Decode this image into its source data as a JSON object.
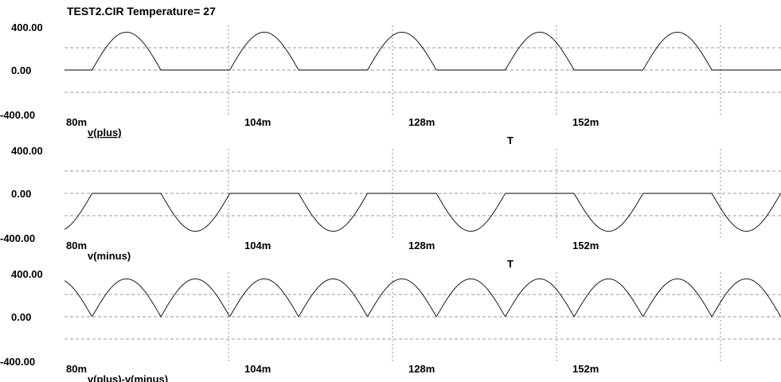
{
  "title": "TEST2.CIR Temperature= 27",
  "chart_data": [
    {
      "type": "line",
      "series": [
        {
          "name": "v(plus)",
          "expr": "max(0, 340*sin(2*pi*60*t))"
        }
      ],
      "xlabel": "T",
      "ylabel": "",
      "xlim": [
        0.08,
        0.1667
      ],
      "ylim": [
        -400,
        400
      ],
      "x_ticks": [
        "80m",
        "104m",
        "128m",
        "152m"
      ],
      "y_ticks": [
        "400.00",
        "0.00",
        "-400.00"
      ],
      "legend_underlined": true,
      "grid": "dashed"
    },
    {
      "type": "line",
      "series": [
        {
          "name": "v(minus)",
          "expr": "min(0, 340*sin(2*pi*60*t))"
        }
      ],
      "xlabel": "T",
      "ylabel": "",
      "xlim": [
        0.08,
        0.1667
      ],
      "ylim": [
        -400,
        400
      ],
      "x_ticks": [
        "80m",
        "104m",
        "128m",
        "152m"
      ],
      "y_ticks": [
        "400.00",
        "0.00",
        "-400.00"
      ],
      "legend_underlined": false,
      "grid": "dashed"
    },
    {
      "type": "line",
      "series": [
        {
          "name": "v(plus)-v(minus)",
          "expr": "abs(340*sin(2*pi*60*t))"
        }
      ],
      "xlabel": "T",
      "ylabel": "",
      "xlim": [
        0.08,
        0.1667
      ],
      "ylim": [
        -400,
        400
      ],
      "x_ticks": [
        "80m",
        "104m",
        "128m",
        "152m"
      ],
      "y_ticks": [
        "400.00",
        "0.00",
        "-400.00"
      ],
      "legend_underlined": false,
      "grid": "dashed"
    }
  ],
  "signal": {
    "amplitude": 340,
    "frequency_hz": 60
  },
  "colors": {
    "trace": "#000000",
    "grid": "#777777",
    "background": "#ffffff"
  }
}
